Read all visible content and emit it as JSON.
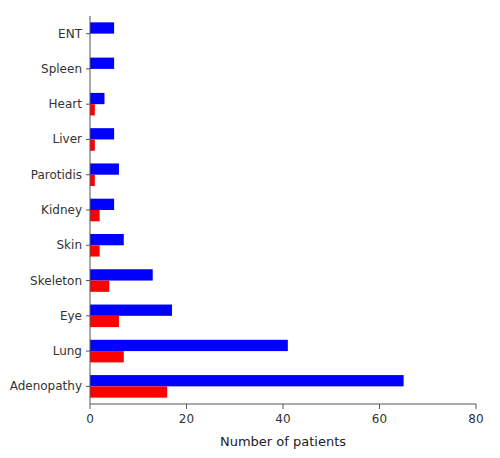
{
  "chart_data": {
    "type": "bar",
    "orientation": "horizontal",
    "categories": [
      "Adenopathy",
      "Lung",
      "Eye",
      "Skeleton",
      "Skin",
      "Kidney",
      "Parotidis",
      "Liver",
      "Heart",
      "Spleen",
      "ENT"
    ],
    "series": [
      {
        "color": "#0000ff",
        "values": [
          65,
          41,
          17,
          13,
          7,
          5,
          6,
          5,
          3,
          5,
          5
        ]
      },
      {
        "color": "#ff0000",
        "values": [
          16,
          7,
          6,
          4,
          2,
          2,
          1,
          1,
          1,
          0,
          0
        ]
      }
    ],
    "xlabel": "Number of patients",
    "xlim": [
      0,
      80
    ],
    "xticks": [
      0,
      20,
      40,
      60,
      80
    ],
    "grid": false
  }
}
